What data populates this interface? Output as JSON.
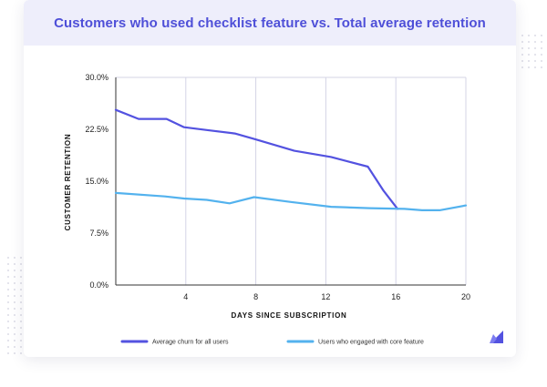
{
  "colors": {
    "header_bg": "#eeeefb",
    "title": "#4e4fd8",
    "series_churn": "#5352e0",
    "series_core": "#53b2ee",
    "grid": "#d4d4e6",
    "logo": "#5352e0"
  },
  "icons": {
    "brand": "brand-logo-icon"
  },
  "chart_data": {
    "type": "line",
    "title": "Customers who used checklist feature vs. Total average retention",
    "xlabel": "DAYS SINCE SUBSCRIPTION",
    "ylabel": "CUSTOMER RETENTION",
    "xlim": [
      0,
      20
    ],
    "ylim": [
      0,
      30
    ],
    "x_ticks": [
      4,
      8,
      12,
      16,
      20
    ],
    "x_tick_labels": [
      "4",
      "8",
      "12",
      "16",
      "20"
    ],
    "y_ticks": [
      0,
      7.5,
      15,
      22.5,
      30
    ],
    "y_tick_labels": [
      "0.0%",
      "7.5%",
      "15.0%",
      "22.5%",
      "30.0%"
    ],
    "grid": "vertical",
    "legend_position": "bottom",
    "series": [
      {
        "name": "Average churn for all users",
        "color": "#5352e0",
        "points": [
          [
            0,
            25.3
          ],
          [
            1.3,
            24.0
          ],
          [
            2.9,
            24.0
          ],
          [
            3.9,
            22.8
          ],
          [
            5.2,
            22.4
          ],
          [
            6.8,
            21.9
          ],
          [
            7.9,
            21.1
          ],
          [
            10.2,
            19.4
          ],
          [
            12.3,
            18.5
          ],
          [
            14.4,
            17.1
          ],
          [
            15.3,
            13.6
          ],
          [
            16.1,
            11.0
          ]
        ]
      },
      {
        "name": "Users who engaged with core feature",
        "color": "#53b2ee",
        "points": [
          [
            0,
            13.3
          ],
          [
            2.8,
            12.8
          ],
          [
            3.9,
            12.5
          ],
          [
            5.2,
            12.3
          ],
          [
            6.5,
            11.8
          ],
          [
            7.9,
            12.7
          ],
          [
            10.0,
            12.0
          ],
          [
            12.3,
            11.3
          ],
          [
            14.5,
            11.1
          ],
          [
            16.5,
            11.0
          ],
          [
            17.5,
            10.8
          ],
          [
            18.5,
            10.8
          ],
          [
            20,
            11.5
          ]
        ]
      }
    ]
  }
}
